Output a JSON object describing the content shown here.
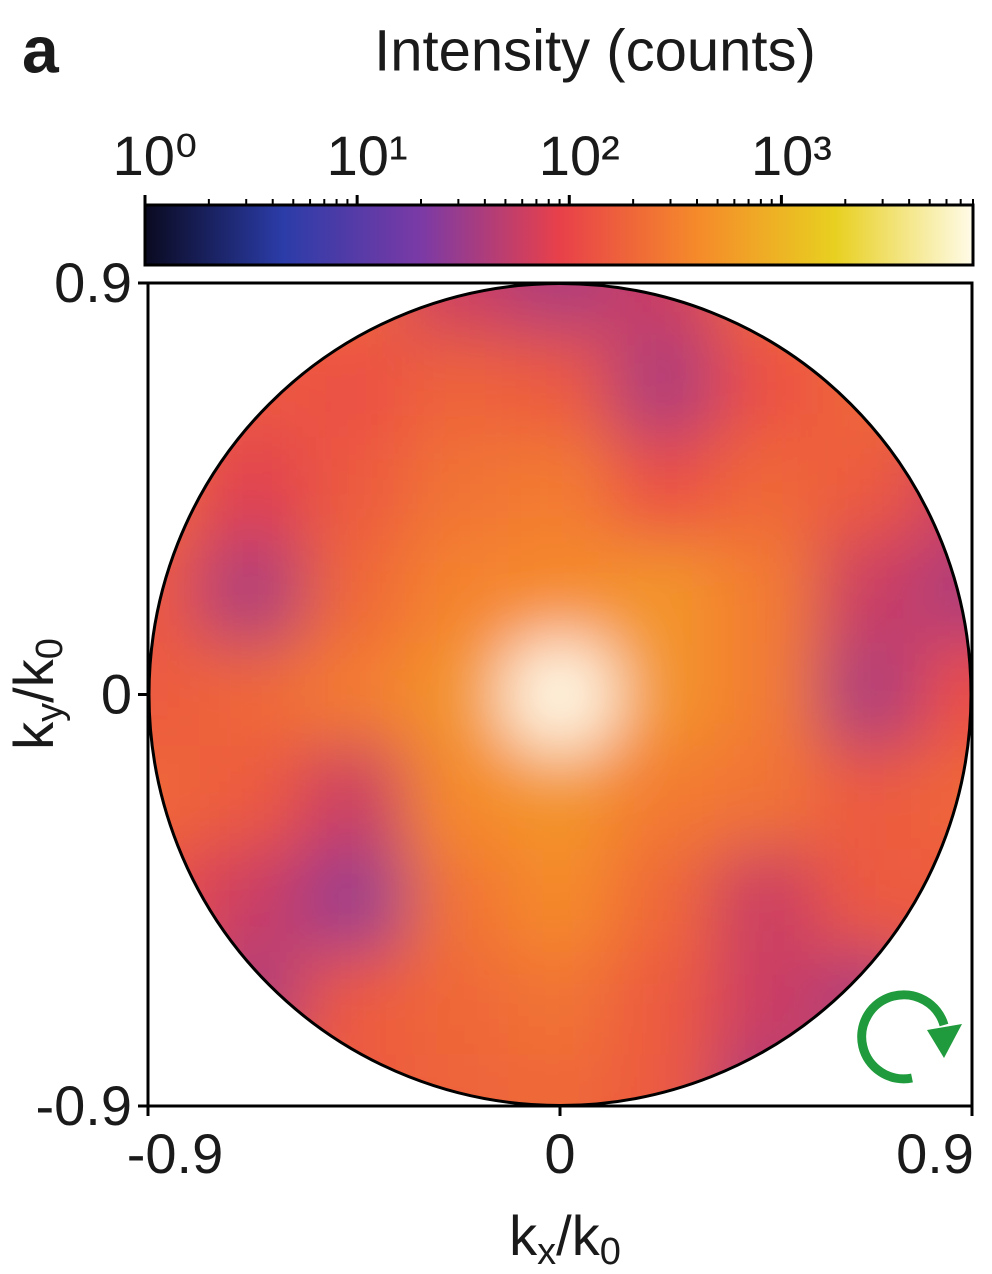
{
  "chart_data": {
    "type": "heatmap",
    "panel_label": "a",
    "colorbar_title": "Intensity (counts)",
    "xlabel": "k_x/k_0",
    "ylabel": "k_y/k_0",
    "xlim": [
      -0.9,
      0.9
    ],
    "ylim": [
      -0.9,
      0.9
    ],
    "xticks": [
      -0.9,
      0,
      0.9
    ],
    "yticks": [
      -0.9,
      0,
      0.9
    ],
    "clim": [
      1,
      8000
    ],
    "clog": true,
    "cticks": [
      {
        "value": 1,
        "label": "10⁰"
      },
      {
        "value": 10,
        "label": "10¹"
      },
      {
        "value": 100,
        "label": "10²"
      },
      {
        "value": 1000,
        "label": "10³"
      }
    ],
    "colormap": [
      "#0a0a20",
      "#2b3ca8",
      "#7b3aa6",
      "#e8404a",
      "#f58a2a",
      "#e8d020",
      "#fffbe8"
    ],
    "x": [
      -0.9,
      -0.675,
      -0.45,
      -0.225,
      0,
      0.225,
      0.45,
      0.675,
      0.9
    ],
    "y": [
      0.9,
      0.675,
      0.45,
      0.225,
      0,
      -0.225,
      -0.45,
      -0.675,
      -0.9
    ],
    "z": [
      [
        200,
        200,
        200,
        60,
        40,
        60,
        200,
        200,
        200
      ],
      [
        200,
        150,
        120,
        180,
        150,
        40,
        120,
        200,
        200
      ],
      [
        200,
        80,
        150,
        250,
        300,
        120,
        200,
        150,
        60
      ],
      [
        150,
        40,
        200,
        350,
        400,
        500,
        300,
        60,
        40
      ],
      [
        150,
        200,
        300,
        500,
        8000,
        500,
        300,
        40,
        120
      ],
      [
        200,
        150,
        60,
        400,
        500,
        300,
        250,
        150,
        200
      ],
      [
        120,
        60,
        30,
        250,
        400,
        200,
        60,
        150,
        150
      ],
      [
        200,
        40,
        150,
        200,
        250,
        150,
        60,
        40,
        200
      ],
      [
        200,
        200,
        150,
        180,
        200,
        150,
        40,
        200,
        200
      ]
    ]
  }
}
